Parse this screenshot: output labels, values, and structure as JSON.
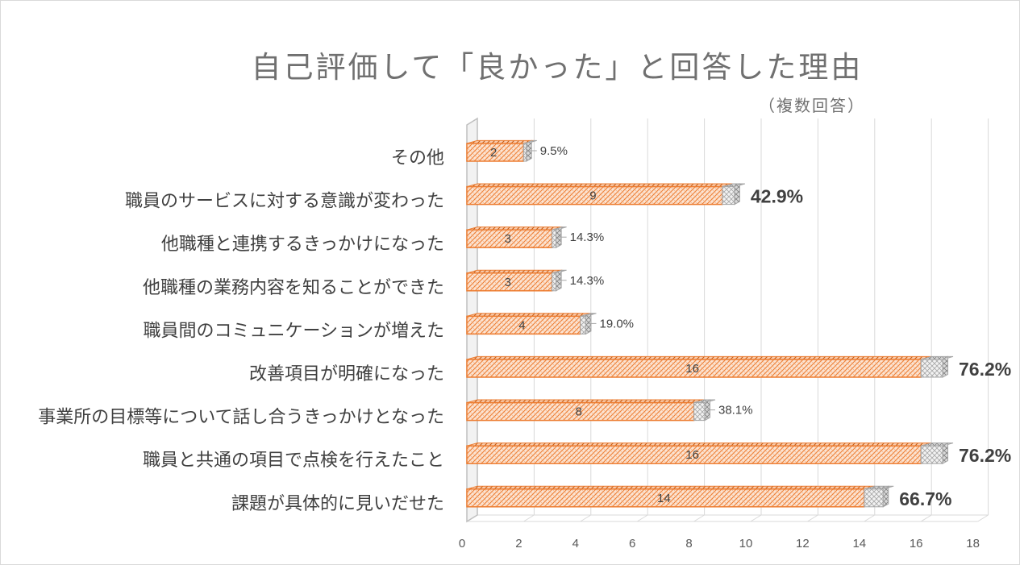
{
  "chart_data": {
    "type": "bar",
    "orientation": "horizontal",
    "title": "自己評価して「良かった」と回答した理由",
    "subtitle": "（複数回答）",
    "xlabel": "",
    "ylabel": "",
    "xlim": [
      0,
      18
    ],
    "x_ticks": [
      "0",
      "2",
      "4",
      "6",
      "8",
      "10",
      "12",
      "14",
      "16",
      "18"
    ],
    "gridlines": true,
    "legend": "none",
    "categories": [
      "その他",
      "職員のサービスに対する意識が変わった",
      "他職種と連携するきっかけになった",
      "他職種の業務内容を知ることができた",
      "職員間のコミュニケーションが増えた",
      "改善項目が明確になった",
      "事業所の目標等について話し合うきっかけとなった",
      "職員と共通の項目で点検を行えたこと",
      "課題が具体的に見いだせた"
    ],
    "series": [
      {
        "values": [
          2,
          9,
          3,
          3,
          4,
          16,
          8,
          16,
          14
        ],
        "color": "#ed7d31"
      },
      {
        "values": [
          0.095,
          0.429,
          0.143,
          0.143,
          0.19,
          0.762,
          0.381,
          0.762,
          0.667
        ],
        "color": "#bfbfbf"
      }
    ],
    "count_labels": [
      "2",
      "9",
      "3",
      "3",
      "4",
      "16",
      "8",
      "16",
      "14"
    ],
    "percent_labels": [
      "9.5%",
      "42.9%",
      "14.3%",
      "14.3%",
      "19.0%",
      "76.2%",
      "38.1%",
      "76.2%",
      "66.7%"
    ],
    "emphasized_percent": [
      false,
      true,
      false,
      false,
      false,
      true,
      false,
      true,
      true
    ]
  }
}
